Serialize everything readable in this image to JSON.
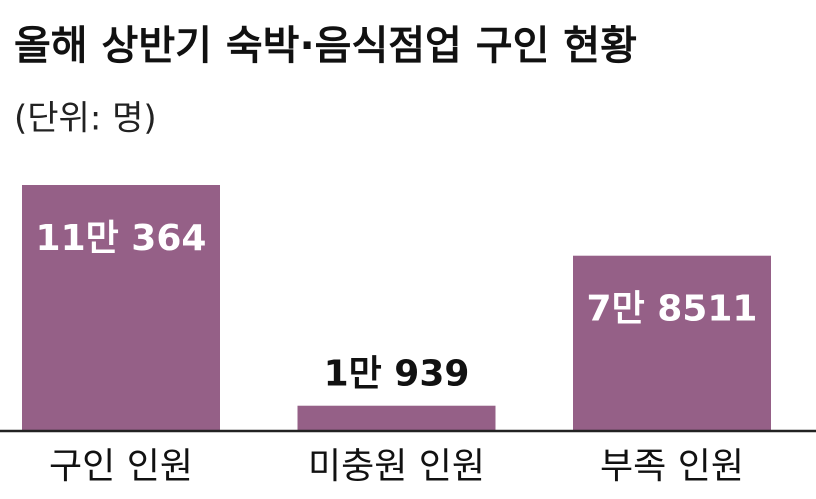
{
  "chart_data": {
    "type": "bar",
    "title": "올해 상반기 숙박·음식점업 구인 현황",
    "subtitle": "(단위: 명)",
    "categories": [
      "구인 인원",
      "미충원 인원",
      "부족 인원"
    ],
    "values": [
      110364,
      10939,
      78511
    ],
    "value_labels": [
      "11만 364",
      "1만 939",
      "7만 8511"
    ],
    "color": "#956087"
  }
}
